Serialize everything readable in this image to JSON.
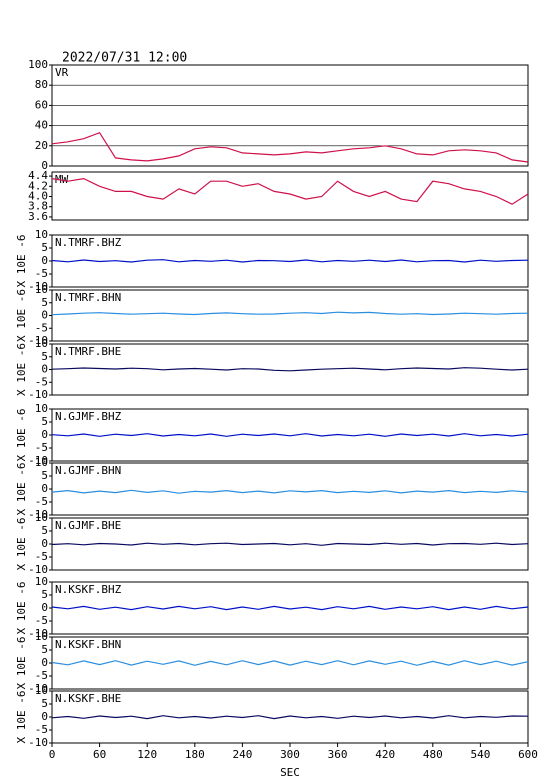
{
  "chart_data": {
    "type": "line",
    "title": "2022/07/31 12:00",
    "xlabel": "SEC",
    "xlim": [
      0,
      600
    ],
    "xticks": [
      0,
      60,
      120,
      180,
      240,
      300,
      360,
      420,
      480,
      540,
      600
    ],
    "x": [
      0,
      20,
      40,
      60,
      80,
      100,
      120,
      140,
      160,
      180,
      200,
      220,
      240,
      260,
      280,
      300,
      320,
      340,
      360,
      380,
      400,
      420,
      440,
      460,
      480,
      500,
      520,
      540,
      560,
      580,
      600
    ],
    "panels": [
      {
        "label": "VR",
        "color": "#d0104a",
        "grid": true,
        "ylim": [
          0,
          100
        ],
        "yticks": [
          0,
          20,
          40,
          60,
          80,
          100
        ],
        "values": [
          22,
          24,
          27,
          33,
          8,
          6,
          5,
          7,
          10,
          17,
          19,
          18,
          13,
          12,
          11,
          12,
          14,
          13,
          15,
          17,
          18,
          20,
          17,
          12,
          11,
          15,
          16,
          15,
          13,
          6,
          4
        ]
      },
      {
        "label": "MW",
        "color": "#d0104a",
        "grid": false,
        "ylim": [
          3.54,
          4.48
        ],
        "yticks": [
          3.6,
          3.8,
          {
            "value": 4,
            "label": "4.0"
          },
          4.2,
          4.4
        ],
        "values": [
          4.35,
          4.3,
          4.35,
          4.2,
          4.1,
          4.1,
          4.0,
          3.95,
          4.15,
          4.05,
          4.3,
          4.3,
          4.2,
          4.25,
          4.1,
          4.05,
          3.95,
          4.0,
          4.3,
          4.1,
          4.0,
          4.1,
          3.95,
          3.9,
          4.3,
          4.25,
          4.15,
          4.1,
          4.0,
          3.85,
          4.05
        ]
      },
      {
        "label": "N.TMRF.BHZ",
        "ylabel": "X 10E -6",
        "color": "#0010c8",
        "grid": false,
        "ylim": [
          -10,
          10
        ],
        "yticks": [
          -10,
          -5,
          0,
          5,
          10
        ],
        "values": [
          0.2,
          -0.3,
          0.4,
          -0.2,
          0.1,
          -0.4,
          0.3,
          0.5,
          -0.3,
          0.2,
          -0.1,
          0.3,
          -0.4,
          0.2,
          0.1,
          -0.2,
          0.4,
          -0.3,
          0.2,
          -0.1,
          0.3,
          -0.2,
          0.4,
          -0.3,
          0.1,
          0.2,
          -0.4,
          0.3,
          -0.1,
          0.2,
          0.3
        ]
      },
      {
        "label": "N.TMRF.BHN",
        "ylabel": "X 10E -6",
        "color": "#2a8ee0",
        "grid": false,
        "ylim": [
          -10,
          10
        ],
        "yticks": [
          -10,
          -5,
          0,
          5,
          10
        ],
        "values": [
          0.3,
          0.6,
          0.9,
          1.1,
          0.8,
          0.5,
          0.7,
          0.9,
          0.6,
          0.4,
          0.8,
          1.0,
          0.7,
          0.5,
          0.6,
          0.9,
          1.1,
          0.8,
          1.3,
          1.0,
          1.2,
          0.8,
          0.5,
          0.7,
          0.4,
          0.6,
          0.9,
          0.7,
          0.5,
          0.8,
          0.9
        ]
      },
      {
        "label": "N.TMRF.BHE",
        "ylabel": "X 10E -6",
        "color": "#0a0a60",
        "grid": false,
        "ylim": [
          -10,
          10
        ],
        "yticks": [
          -10,
          -5,
          0,
          5,
          10
        ],
        "values": [
          0.1,
          0.3,
          0.6,
          0.4,
          0.2,
          0.5,
          0.3,
          -0.1,
          0.2,
          0.4,
          0.1,
          -0.2,
          0.3,
          0.2,
          -0.3,
          -0.5,
          -0.2,
          0.1,
          0.3,
          0.5,
          0.2,
          -0.1,
          0.3,
          0.6,
          0.4,
          0.2,
          0.7,
          0.5,
          0.1,
          -0.2,
          0.1
        ]
      },
      {
        "label": "N.GJMF.BHZ",
        "ylabel": "X 10E -6",
        "color": "#0010c8",
        "grid": false,
        "ylim": [
          -10,
          10
        ],
        "yticks": [
          -10,
          -5,
          0,
          5,
          10
        ],
        "values": [
          0.1,
          -0.3,
          0.4,
          -0.5,
          0.3,
          -0.2,
          0.5,
          -0.4,
          0.2,
          -0.3,
          0.4,
          -0.5,
          0.3,
          -0.2,
          0.4,
          -0.3,
          0.5,
          -0.4,
          0.2,
          -0.3,
          0.3,
          -0.5,
          0.4,
          -0.2,
          0.3,
          -0.4,
          0.5,
          -0.3,
          0.2,
          -0.4,
          0.3
        ]
      },
      {
        "label": "N.GJMF.BHN",
        "ylabel": "X 10E -6",
        "color": "#2a8ee0",
        "grid": false,
        "ylim": [
          -10,
          10
        ],
        "yticks": [
          -10,
          -5,
          0,
          5,
          10
        ],
        "values": [
          -1.2,
          -0.6,
          -1.5,
          -0.8,
          -1.4,
          -0.5,
          -1.3,
          -0.7,
          -1.6,
          -0.9,
          -1.2,
          -0.6,
          -1.4,
          -0.8,
          -1.5,
          -0.7,
          -1.1,
          -0.6,
          -1.4,
          -0.9,
          -1.3,
          -0.7,
          -1.5,
          -0.8,
          -1.2,
          -0.6,
          -1.4,
          -0.9,
          -1.3,
          -0.7,
          -1.2
        ]
      },
      {
        "label": "N.GJMF.BHE",
        "ylabel": "X 10E -6",
        "color": "#0a0a60",
        "grid": false,
        "ylim": [
          -10,
          10
        ],
        "yticks": [
          -10,
          -5,
          0,
          5,
          10
        ],
        "values": [
          -0.2,
          0.1,
          -0.3,
          0.2,
          0.0,
          -0.4,
          0.3,
          -0.1,
          0.2,
          -0.3,
          0.1,
          0.3,
          -0.2,
          0.0,
          0.2,
          -0.3,
          0.1,
          -0.5,
          0.2,
          0.0,
          -0.2,
          0.3,
          -0.1,
          0.2,
          -0.4,
          0.1,
          0.2,
          -0.1,
          0.3,
          -0.2,
          0.1
        ]
      },
      {
        "label": "N.KSKF.BHZ",
        "ylabel": "X 10E -6",
        "color": "#0010c8",
        "grid": false,
        "ylim": [
          -10,
          10
        ],
        "yticks": [
          -10,
          -5,
          0,
          5,
          10
        ],
        "values": [
          0.4,
          -0.3,
          0.6,
          -0.5,
          0.3,
          -0.6,
          0.5,
          -0.4,
          0.6,
          -0.3,
          0.5,
          -0.6,
          0.4,
          -0.5,
          0.6,
          -0.4,
          0.3,
          -0.6,
          0.5,
          -0.3,
          0.6,
          -0.5,
          0.4,
          -0.3,
          0.5,
          -0.6,
          0.4,
          -0.5,
          0.6,
          -0.3,
          0.4
        ]
      },
      {
        "label": "N.KSKF.BHN",
        "ylabel": "X 10E -6",
        "color": "#2a8ee0",
        "grid": false,
        "ylim": [
          -10,
          10
        ],
        "yticks": [
          -10,
          -5,
          0,
          5,
          10
        ],
        "values": [
          0.2,
          -0.7,
          0.8,
          -0.6,
          0.9,
          -0.8,
          0.7,
          -0.5,
          0.8,
          -0.9,
          0.6,
          -0.7,
          0.9,
          -0.6,
          0.8,
          -0.8,
          0.7,
          -0.6,
          0.9,
          -0.7,
          0.8,
          -0.5,
          0.7,
          -0.9,
          0.6,
          -0.8,
          0.9,
          -0.6,
          0.7,
          -0.8,
          0.5
        ]
      },
      {
        "label": "N.KSKF.BHE",
        "ylabel": "X 10E -6",
        "color": "#0a0a60",
        "grid": false,
        "ylim": [
          -10,
          10
        ],
        "yticks": [
          -10,
          -5,
          0,
          5,
          10
        ],
        "values": [
          -0.3,
          0.2,
          -0.5,
          0.4,
          -0.2,
          0.3,
          -0.6,
          0.5,
          -0.3,
          0.2,
          -0.4,
          0.3,
          -0.2,
          0.5,
          -0.6,
          0.4,
          -0.3,
          0.2,
          -0.5,
          0.3,
          -0.2,
          0.4,
          -0.3,
          0.2,
          -0.4,
          0.5,
          -0.3,
          0.2,
          -0.1,
          0.4,
          0.3
        ]
      }
    ]
  }
}
